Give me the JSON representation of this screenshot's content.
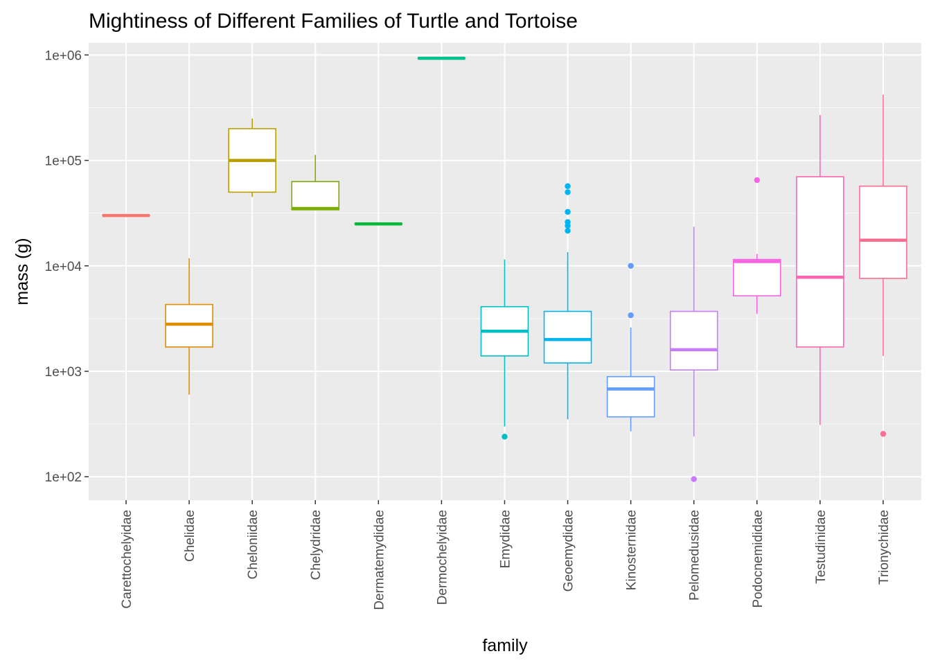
{
  "chart_data": {
    "type": "boxplot",
    "title": "Mightiness of Different Families of Turtle and Tortoise",
    "xlabel": "family",
    "ylabel": "mass (g)",
    "y_scale": "log10",
    "ylim": [
      60,
      1300000
    ],
    "y_ticks": [
      100,
      1000,
      10000,
      100000,
      1000000
    ],
    "y_tick_labels": [
      "1e+02",
      "1e+03",
      "1e+04",
      "1e+05",
      "1e+06"
    ],
    "grid": true,
    "legend": "none",
    "categories": [
      "Carettochelyidae",
      "Chelidae",
      "Cheloniidae",
      "Chelydridae",
      "Dermatemydidae",
      "Dermochelyidae",
      "Emydidae",
      "Geoemydidae",
      "Kinosternidae",
      "Pelomedusidae",
      "Podocnemididae",
      "Testudinidae",
      "Trionychidae"
    ],
    "boxes": [
      {
        "family": "Carettochelyidae",
        "color": "#F8766D",
        "min": 30000,
        "q1": 30000,
        "median": 30000,
        "q3": 30000,
        "max": 30000,
        "outliers": []
      },
      {
        "family": "Chelidae",
        "color": "#DE8C00",
        "min": 600,
        "q1": 1700,
        "median": 2800,
        "q3": 4300,
        "max": 11800,
        "outliers": []
      },
      {
        "family": "Cheloniidae",
        "color": "#B79F00",
        "min": 45000,
        "q1": 50000,
        "median": 100000,
        "q3": 200000,
        "max": 250000,
        "outliers": []
      },
      {
        "family": "Chelydridae",
        "color": "#7CAE00",
        "min": 34000,
        "q1": 34000,
        "median": 35000,
        "q3": 63000,
        "max": 113000,
        "outliers": []
      },
      {
        "family": "Dermatemydidae",
        "color": "#00BA38",
        "min": 25000,
        "q1": 25000,
        "median": 25000,
        "q3": 25000,
        "max": 25000,
        "outliers": []
      },
      {
        "family": "Dermochelyidae",
        "color": "#00C08B",
        "min": 930000,
        "q1": 930000,
        "median": 930000,
        "q3": 930000,
        "max": 930000,
        "outliers": []
      },
      {
        "family": "Emydidae",
        "color": "#00BFC4",
        "min": 300,
        "q1": 1400,
        "median": 2400,
        "q3": 4100,
        "max": 11500,
        "outliers": [
          240
        ]
      },
      {
        "family": "Geoemydidae",
        "color": "#00B4F0",
        "min": 350,
        "q1": 1200,
        "median": 2000,
        "q3": 3700,
        "max": 13500,
        "outliers": [
          21500,
          24000,
          26000,
          32500,
          50000,
          57000
        ]
      },
      {
        "family": "Kinosternidae",
        "color": "#619CFF",
        "min": 270,
        "q1": 370,
        "median": 680,
        "q3": 890,
        "max": 2600,
        "outliers": [
          3400,
          10000
        ]
      },
      {
        "family": "Pelomedusidae",
        "color": "#C77CFF",
        "min": 240,
        "q1": 1030,
        "median": 1600,
        "q3": 3700,
        "max": 23500,
        "outliers": [
          95
        ]
      },
      {
        "family": "Podocnemididae",
        "color": "#F564E3",
        "min": 3500,
        "q1": 5200,
        "median": 11000,
        "q3": 11500,
        "max": 13000,
        "outliers": [
          65000
        ]
      },
      {
        "family": "Testudinidae",
        "color": "#FF64B0",
        "min": 310,
        "q1": 1700,
        "median": 7800,
        "q3": 70000,
        "max": 270000,
        "outliers": []
      },
      {
        "family": "Trionychidae",
        "color": "#FF6C91",
        "min": 1400,
        "q1": 7600,
        "median": 17500,
        "q3": 57000,
        "max": 420000,
        "outliers": [
          255
        ]
      }
    ]
  },
  "colors": {
    "panel_background": "#EBEBEB",
    "grid_major": "#FFFFFF",
    "axis_text": "#4D4D4D",
    "box_fill": "#FFFFFF"
  }
}
